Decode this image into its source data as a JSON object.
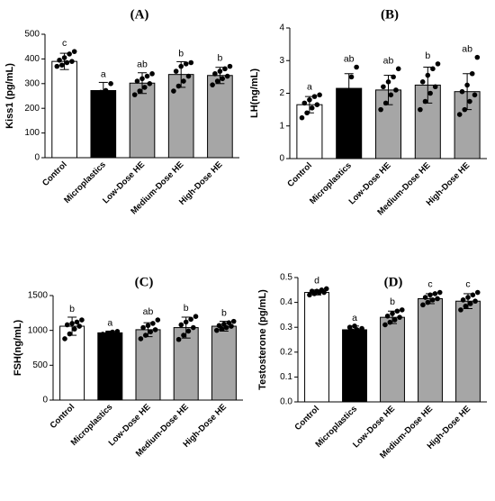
{
  "chart_data": [
    {
      "type": "bar",
      "panel": "(A)",
      "ylabel": "Kiss1 (pg/mL)",
      "ylim": [
        0,
        500
      ],
      "yticks": [
        "0",
        "100",
        "200",
        "300",
        "400",
        "500"
      ],
      "categories": [
        "Control",
        "Microplastics",
        "Low-Dose HE",
        "Medium-Dose HE",
        "High-Dose HE"
      ],
      "bar_colors": [
        "#ffffff",
        "#000000",
        "#a6a6a6",
        "#a6a6a6",
        "#a6a6a6"
      ],
      "values": [
        390,
        272,
        302,
        337,
        333
      ],
      "errors": [
        33,
        33,
        42,
        52,
        33
      ],
      "significance": [
        "c",
        "a",
        "ab",
        "b",
        "b"
      ],
      "points": [
        [
          370,
          375,
          385,
          390,
          395,
          405,
          420,
          430
        ],
        [
          255,
          265,
          272,
          300
        ],
        [
          255,
          270,
          285,
          300,
          310,
          320,
          330,
          340
        ],
        [
          270,
          290,
          310,
          330,
          350,
          370,
          380,
          385
        ],
        [
          295,
          310,
          320,
          330,
          340,
          350,
          360,
          370
        ]
      ]
    },
    {
      "type": "bar",
      "panel": "(B)",
      "ylabel": "LH(ng/mL)",
      "ylim": [
        0,
        4
      ],
      "yticks": [
        "0",
        "1",
        "2",
        "3",
        "4"
      ],
      "categories": [
        "Control",
        "Microplastics",
        "Low-Dose HE",
        "Medium-Dose HE",
        "High-Dose HE"
      ],
      "bar_colors": [
        "#ffffff",
        "#000000",
        "#a6a6a6",
        "#a6a6a6",
        "#a6a6a6"
      ],
      "values": [
        1.65,
        2.15,
        2.1,
        2.25,
        2.05
      ],
      "errors": [
        0.25,
        0.45,
        0.45,
        0.55,
        0.55
      ],
      "significance": [
        "a",
        "ab",
        "ab",
        "b",
        "ab"
      ],
      "points": [
        [
          1.25,
          1.4,
          1.55,
          1.65,
          1.7,
          1.8,
          1.9,
          1.95
        ],
        [
          1.8,
          2.05,
          2.5,
          2.8
        ],
        [
          1.5,
          1.7,
          1.95,
          2.1,
          2.2,
          2.35,
          2.5,
          2.75
        ],
        [
          1.5,
          1.75,
          2.0,
          2.2,
          2.35,
          2.55,
          2.75,
          2.9
        ],
        [
          1.35,
          1.5,
          1.75,
          1.95,
          2.05,
          2.25,
          2.6,
          3.1
        ]
      ]
    },
    {
      "type": "bar",
      "panel": "(C)",
      "ylabel": "FSH(ng/mL)",
      "ylim": [
        0,
        1500
      ],
      "yticks": [
        "0",
        "500",
        "1000",
        "1500"
      ],
      "categories": [
        "Control",
        "Microplastics",
        "Low-Dose HE",
        "Medium-Dose HE",
        "High-Dose HE"
      ],
      "bar_colors": [
        "#ffffff",
        "#000000",
        "#a6a6a6",
        "#a6a6a6",
        "#a6a6a6"
      ],
      "values": [
        1060,
        965,
        1010,
        1040,
        1060
      ],
      "errors": [
        130,
        25,
        100,
        150,
        70
      ],
      "significance": [
        "b",
        "a",
        "ab",
        "b",
        "b"
      ],
      "points": [
        [
          880,
          950,
          1020,
          1060,
          1080,
          1100,
          1120,
          1150
        ],
        [
          945,
          960,
          975,
          985
        ],
        [
          880,
          930,
          980,
          1010,
          1040,
          1070,
          1100,
          1150
        ],
        [
          870,
          930,
          990,
          1040,
          1080,
          1120,
          1160,
          1200
        ],
        [
          1000,
          1020,
          1040,
          1060,
          1070,
          1090,
          1110,
          1130
        ]
      ]
    },
    {
      "type": "bar",
      "panel": "(D)",
      "ylabel": "Testosterone (pg/mL)",
      "ylim": [
        0,
        0.5
      ],
      "yticks": [
        "0.0",
        "0.1",
        "0.2",
        "0.3",
        "0.4",
        "0.5"
      ],
      "categories": [
        "Control",
        "Microplastics",
        "Low-Dose HE",
        "Medium-Dose HE",
        "High-Dose HE"
      ],
      "bar_colors": [
        "#ffffff",
        "#000000",
        "#a6a6a6",
        "#a6a6a6",
        "#a6a6a6"
      ],
      "values": [
        0.44,
        0.29,
        0.34,
        0.415,
        0.405
      ],
      "errors": [
        0.01,
        0.015,
        0.025,
        0.02,
        0.03
      ],
      "significance": [
        "d",
        "a",
        "b",
        "c",
        "c"
      ],
      "points": [
        [
          0.43,
          0.435,
          0.44,
          0.44,
          0.445,
          0.445,
          0.45,
          0.455
        ],
        [
          0.275,
          0.285,
          0.29,
          0.295,
          0.3,
          0.305
        ],
        [
          0.31,
          0.32,
          0.33,
          0.34,
          0.345,
          0.355,
          0.365,
          0.37
        ],
        [
          0.39,
          0.4,
          0.41,
          0.415,
          0.42,
          0.43,
          0.435,
          0.44
        ],
        [
          0.37,
          0.385,
          0.395,
          0.405,
          0.41,
          0.42,
          0.43,
          0.44
        ]
      ]
    }
  ]
}
